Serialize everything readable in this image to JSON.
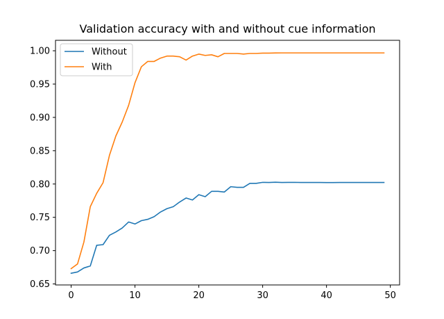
{
  "chart_data": {
    "type": "line",
    "title": "Validation accuracy with and without cue information",
    "xlabel": "",
    "ylabel": "",
    "xlim": [
      -2.45,
      51.45
    ],
    "ylim": [
      0.6485,
      1.0157
    ],
    "xticks": [
      0,
      10,
      20,
      30,
      40,
      50
    ],
    "yticks": [
      0.65,
      0.7,
      0.75,
      0.8,
      0.85,
      0.9,
      0.95,
      1.0
    ],
    "ytick_labels": [
      "0.65",
      "0.70",
      "0.75",
      "0.80",
      "0.85",
      "0.90",
      "0.95",
      "1.00"
    ],
    "xtick_labels": [
      "0",
      "10",
      "20",
      "30",
      "40",
      "50"
    ],
    "grid": false,
    "legend_position": "top-left",
    "colors": {
      "Without": "#1f77b4",
      "With": "#ff7f0e"
    },
    "x": [
      0,
      1,
      2,
      3,
      4,
      5,
      6,
      7,
      8,
      9,
      10,
      11,
      12,
      13,
      14,
      15,
      16,
      17,
      18,
      19,
      20,
      21,
      22,
      23,
      24,
      25,
      26,
      27,
      28,
      29,
      30,
      31,
      32,
      33,
      34,
      35,
      36,
      37,
      38,
      39,
      40,
      41,
      42,
      43,
      44,
      45,
      46,
      47,
      48,
      49
    ],
    "series": [
      {
        "name": "Without",
        "values": [
          0.666,
          0.668,
          0.674,
          0.677,
          0.708,
          0.709,
          0.723,
          0.728,
          0.734,
          0.743,
          0.74,
          0.745,
          0.747,
          0.751,
          0.758,
          0.763,
          0.766,
          0.773,
          0.779,
          0.776,
          0.784,
          0.781,
          0.789,
          0.789,
          0.788,
          0.796,
          0.795,
          0.795,
          0.801,
          0.801,
          0.8025,
          0.8023,
          0.8027,
          0.8023,
          0.8024,
          0.8025,
          0.8023,
          0.8023,
          0.8023,
          0.8023,
          0.8022,
          0.8022,
          0.8023,
          0.8023,
          0.8023,
          0.8023,
          0.8023,
          0.8023,
          0.8023,
          0.8023
        ]
      },
      {
        "name": "With",
        "values": [
          0.673,
          0.68,
          0.713,
          0.766,
          0.786,
          0.802,
          0.843,
          0.872,
          0.893,
          0.918,
          0.952,
          0.976,
          0.984,
          0.984,
          0.989,
          0.992,
          0.992,
          0.991,
          0.986,
          0.992,
          0.995,
          0.993,
          0.994,
          0.991,
          0.996,
          0.996,
          0.996,
          0.995,
          0.996,
          0.996,
          0.9965,
          0.9965,
          0.9967,
          0.9968,
          0.9968,
          0.9968,
          0.9968,
          0.9968,
          0.9968,
          0.9968,
          0.9968,
          0.9968,
          0.9968,
          0.9968,
          0.9968,
          0.9968,
          0.9968,
          0.9968,
          0.9968,
          0.9968
        ]
      }
    ]
  }
}
